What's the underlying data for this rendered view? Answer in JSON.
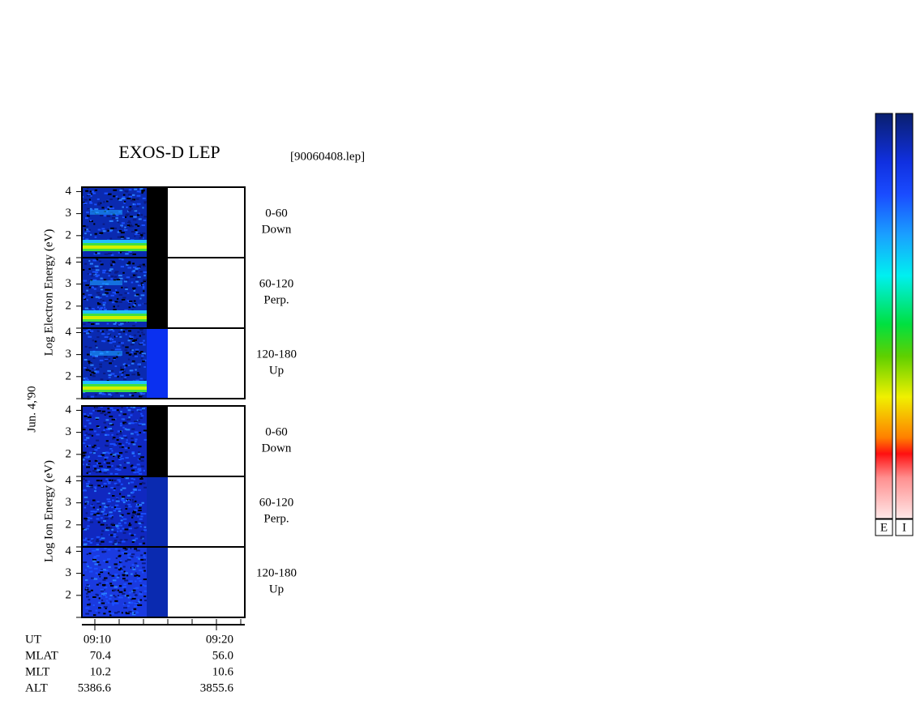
{
  "chart_data": {
    "type": "spectrogram",
    "title": "EXOS-D LEP",
    "subtitle": "[90060408.lep]",
    "date": "Jun. 4,'90",
    "ylim": [
      1,
      4.2
    ],
    "yticks": [
      2,
      3,
      4
    ],
    "groups": [
      {
        "ylabel": "Log   Electron   Energy (eV)",
        "panels": [
          {
            "angle": "0-60",
            "direction": "Down"
          },
          {
            "angle": "60-120",
            "direction": "Perp."
          },
          {
            "angle": "120-180",
            "direction": "Up"
          }
        ]
      },
      {
        "ylabel": "Log   Ion   Energy (eV)",
        "panels": [
          {
            "angle": "0-60",
            "direction": "Down"
          },
          {
            "angle": "60-120",
            "direction": "Perp."
          },
          {
            "angle": "120-180",
            "direction": "Up"
          }
        ]
      }
    ],
    "orbit": {
      "labels": [
        "UT",
        "MLAT",
        "MLT",
        "ALT"
      ],
      "columns": [
        [
          "09:10",
          "70.4",
          "10.2",
          "5386.6"
        ],
        [
          "09:20",
          "56.0",
          "10.6",
          "3855.6"
        ]
      ]
    },
    "colorbar_labels": [
      "E",
      "I"
    ]
  }
}
